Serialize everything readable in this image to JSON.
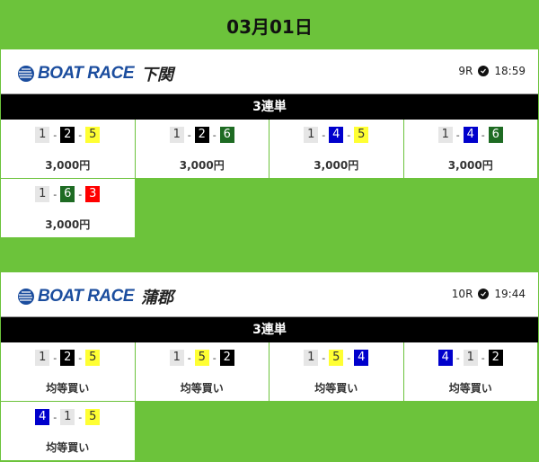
{
  "date": "03月01日",
  "boat_colors": {
    "1": [
      "#e6e6e6",
      "#333"
    ],
    "2": [
      "#000000",
      "#ffffff"
    ],
    "3": [
      "#ff0000",
      "#ffffff"
    ],
    "4": [
      "#0000cc",
      "#ffffff"
    ],
    "5": [
      "#ffff33",
      "#333"
    ],
    "6": [
      "#1e6b23",
      "#ffffff"
    ]
  },
  "accent": "#6cc33b",
  "races": [
    {
      "logo": "BOAT RACE",
      "venue": "下関",
      "race": "9R",
      "time": "18:59",
      "bet_type": "3連単",
      "picks": [
        {
          "combo": [
            "1",
            "2",
            "5"
          ],
          "stake": "3,000円"
        },
        {
          "combo": [
            "1",
            "2",
            "6"
          ],
          "stake": "3,000円"
        },
        {
          "combo": [
            "1",
            "4",
            "5"
          ],
          "stake": "3,000円"
        },
        {
          "combo": [
            "1",
            "4",
            "6"
          ],
          "stake": "3,000円"
        },
        {
          "combo": [
            "1",
            "6",
            "3"
          ],
          "stake": "3,000円"
        }
      ]
    },
    {
      "logo": "BOAT RACE",
      "venue": "蒲郡",
      "race": "10R",
      "time": "19:44",
      "bet_type": "3連単",
      "picks": [
        {
          "combo": [
            "1",
            "2",
            "5"
          ],
          "stake": "均等買い"
        },
        {
          "combo": [
            "1",
            "5",
            "2"
          ],
          "stake": "均等買い"
        },
        {
          "combo": [
            "1",
            "5",
            "4"
          ],
          "stake": "均等買い"
        },
        {
          "combo": [
            "4",
            "1",
            "2"
          ],
          "stake": "均等買い"
        },
        {
          "combo": [
            "4",
            "1",
            "5"
          ],
          "stake": "均等買い"
        }
      ]
    }
  ]
}
